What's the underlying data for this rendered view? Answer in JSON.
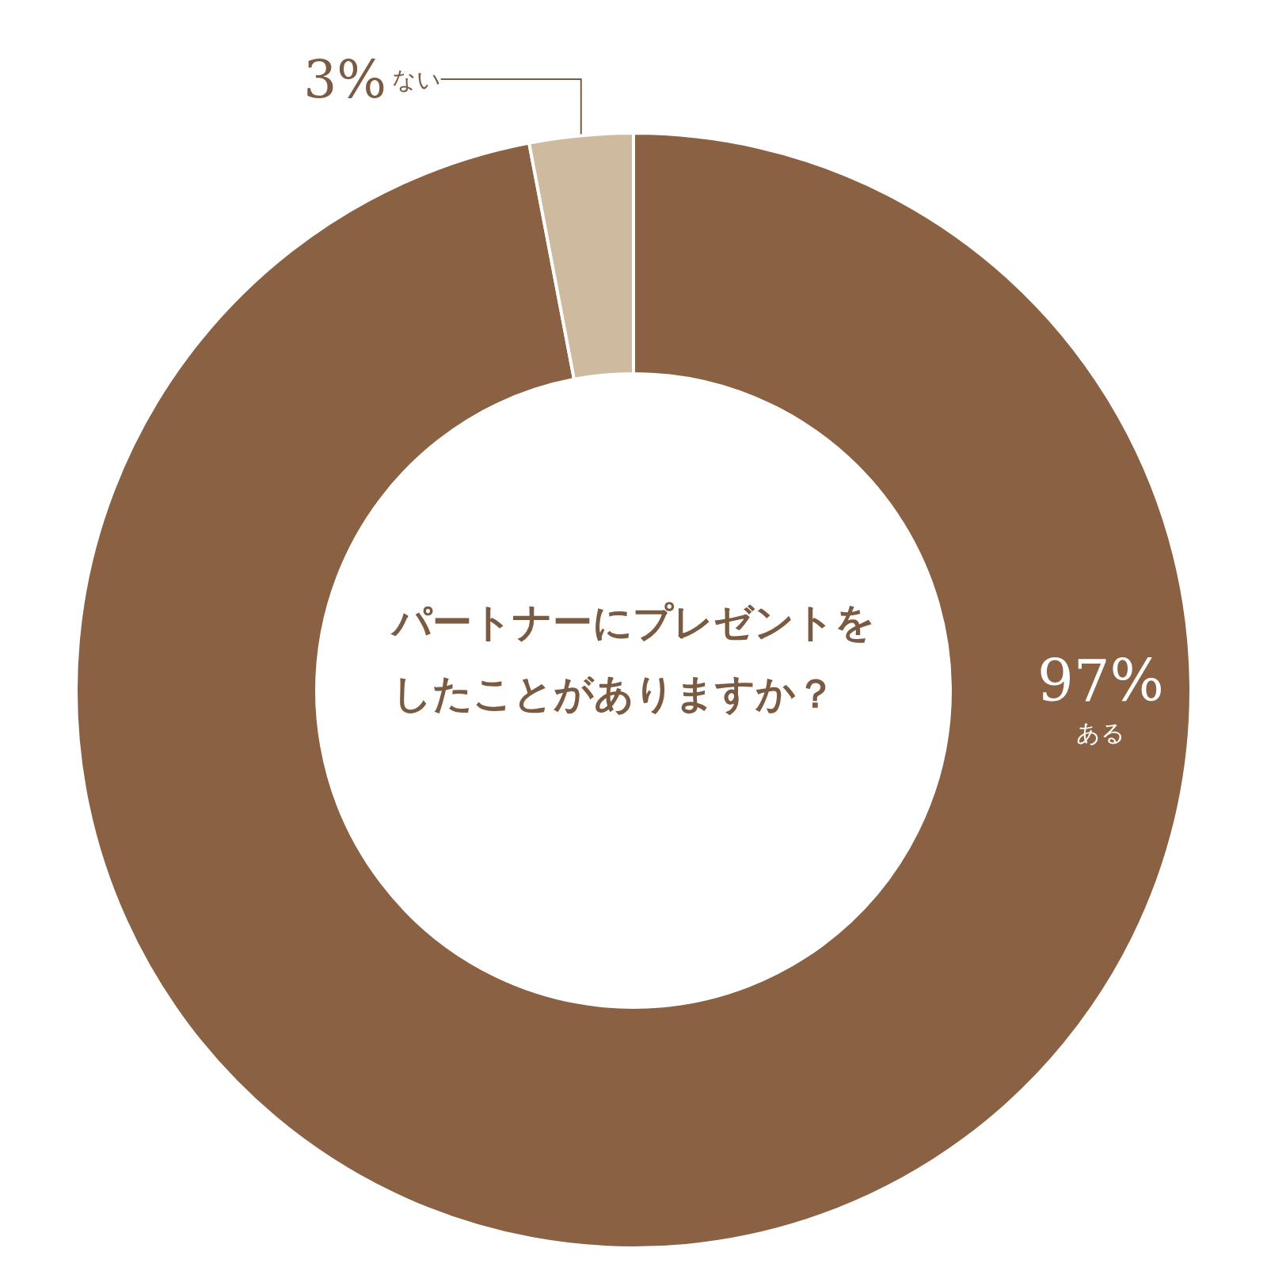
{
  "chart_data": {
    "type": "donut",
    "title": "パートナーにプレゼントをしたことがありますか？",
    "categories": [
      "ある",
      "ない"
    ],
    "values": [
      97,
      3
    ],
    "colors": [
      "#8a6142",
      "#cdba9f"
    ],
    "value_labels": [
      "97%",
      "3%"
    ]
  }
}
